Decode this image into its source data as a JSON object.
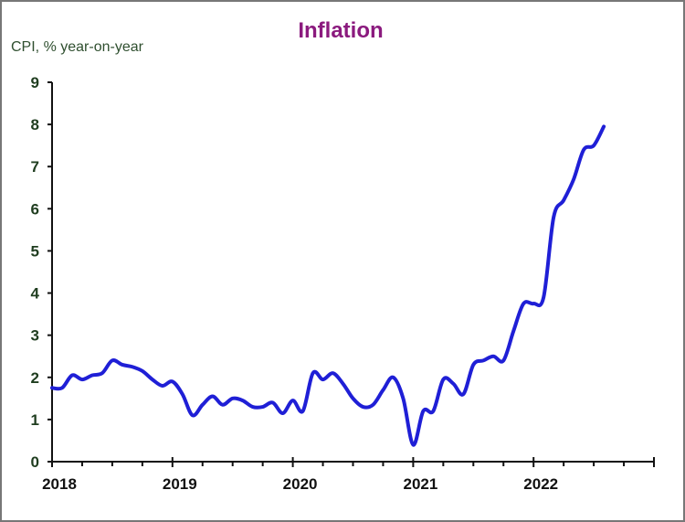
{
  "chart_data": {
    "type": "line",
    "title": "Inflation",
    "ylabel": "CPI, % year-on-year",
    "xlabel": "",
    "ylim": [
      0,
      9
    ],
    "yticks": [
      "0",
      "1",
      "2",
      "3",
      "4",
      "5",
      "6",
      "7",
      "8",
      "9"
    ],
    "xticks": [
      "2018",
      "2019",
      "2020",
      "2021",
      "2022"
    ],
    "x_range_years": [
      2018,
      2023
    ],
    "x_start": "2018-01",
    "x_frequency": "monthly",
    "grid": false,
    "line_color": "#1f1fd6",
    "series": [
      {
        "name": "CPI",
        "values": [
          1.75,
          1.75,
          2.05,
          1.95,
          2.05,
          2.1,
          2.4,
          2.3,
          2.25,
          2.15,
          1.95,
          1.8,
          1.9,
          1.6,
          1.1,
          1.35,
          1.55,
          1.35,
          1.5,
          1.45,
          1.3,
          1.3,
          1.4,
          1.15,
          1.45,
          1.2,
          2.1,
          1.95,
          2.1,
          1.85,
          1.5,
          1.3,
          1.35,
          1.7,
          2.0,
          1.5,
          0.4,
          1.2,
          1.2,
          1.95,
          1.85,
          1.6,
          2.3,
          2.4,
          2.5,
          2.4,
          3.1,
          3.75,
          3.75,
          3.9,
          5.8,
          6.2,
          6.7,
          7.4,
          7.5,
          7.95
        ]
      }
    ]
  }
}
